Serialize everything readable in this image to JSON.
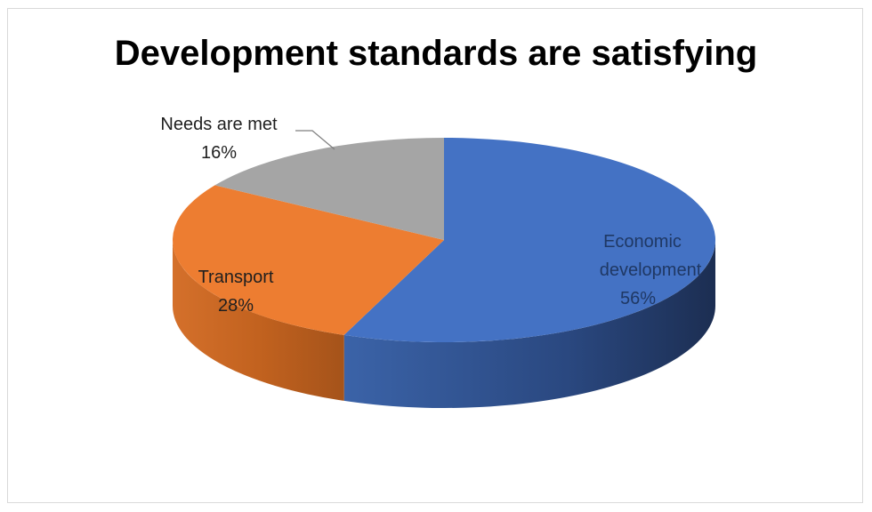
{
  "chart_data": {
    "type": "pie",
    "style": "3d",
    "title": "Development standards are satisfying",
    "slices": [
      {
        "label": "Economic development",
        "value": 56,
        "value_label": "56%",
        "color": "#4472c4",
        "label_color": "#1f3864"
      },
      {
        "label": "Transport",
        "value": 28,
        "value_label": "28%",
        "color": "#ed7d31",
        "label_color": "#1f1f1f"
      },
      {
        "label": "Needs are met",
        "value": 16,
        "value_label": "16%",
        "color": "#a5a5a5",
        "label_color": "#1f1f1f"
      }
    ],
    "legend": "none"
  }
}
